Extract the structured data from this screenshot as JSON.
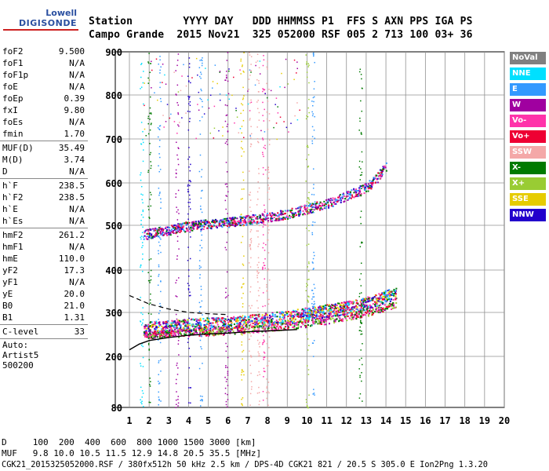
{
  "logo": {
    "top": "Lowell",
    "bottom": "DIGISONDE"
  },
  "header": {
    "row1": "Station        YYYY DAY   DDD HHMMSS P1  FFS S AXN PPS IGA PS",
    "row2": "Campo Grande  2015 Nov21  325 052000 RSF 005 2 713 100 03+ 36"
  },
  "params": {
    "group1": [
      {
        "label": "foF2",
        "value": "9.500"
      },
      {
        "label": "foF1",
        "value": "N/A"
      },
      {
        "label": "foF1p",
        "value": "N/A"
      },
      {
        "label": "foE",
        "value": "N/A"
      },
      {
        "label": "foEp",
        "value": "0.39"
      },
      {
        "label": "fxI",
        "value": "9.80"
      },
      {
        "label": "foEs",
        "value": "N/A"
      },
      {
        "label": "fmin",
        "value": "1.70"
      }
    ],
    "group2": [
      {
        "label": "MUF(D)",
        "value": "35.49"
      },
      {
        "label": "M(D)",
        "value": "3.74"
      },
      {
        "label": "D",
        "value": "N/A"
      }
    ],
    "group3": [
      {
        "label": "h`F",
        "value": "238.5"
      },
      {
        "label": "h`F2",
        "value": "238.5"
      },
      {
        "label": "h`E",
        "value": "N/A"
      },
      {
        "label": "h`Es",
        "value": "N/A"
      }
    ],
    "group4": [
      {
        "label": "hmF2",
        "value": "261.2"
      },
      {
        "label": "hmF1",
        "value": "N/A"
      },
      {
        "label": "hmE",
        "value": "110.0"
      },
      {
        "label": "yF2",
        "value": "17.3"
      },
      {
        "label": "yF1",
        "value": "N/A"
      },
      {
        "label": "yE",
        "value": "20.0"
      },
      {
        "label": "B0",
        "value": "21.0"
      },
      {
        "label": "B1",
        "value": "1.31"
      }
    ],
    "group5": [
      {
        "label": "C-level",
        "value": "33"
      }
    ],
    "auto": [
      "Auto:",
      "Artist5",
      "500200"
    ]
  },
  "legend": [
    {
      "label": "NoVal",
      "color": "#808080"
    },
    {
      "label": "NNE",
      "color": "#00e0ff"
    },
    {
      "label": "E",
      "color": "#3399ff"
    },
    {
      "label": "W",
      "color": "#a000a0"
    },
    {
      "label": "Vo-",
      "color": "#ff33aa"
    },
    {
      "label": "Vo+",
      "color": "#ee0033"
    },
    {
      "label": "SSW",
      "color": "#f4a8a8"
    },
    {
      "label": "X-",
      "color": "#007a00"
    },
    {
      "label": "X+",
      "color": "#99cc33"
    },
    {
      "label": "SSE",
      "color": "#e6cc00"
    },
    {
      "label": "NNW",
      "color": "#2200cc"
    }
  ],
  "footer": {
    "d_line": "D     100  200  400  600  800 1000 1500 3000 [km]",
    "muf_line": "MUF   9.8 10.0 10.5 11.5 12.9 14.8 20.5 35.5 [MHz]",
    "info_line": "CGK21_2015325052000.RSF / 380fx512h 50 kHz 2.5 km / DPS-4D CGK21 821 / 20.5 S 305.0 E Ion2Png 1.3.20"
  },
  "chart_data": {
    "type": "scatter",
    "x_ticks": [
      "1",
      "2",
      "3",
      "4",
      "5",
      "6",
      "7",
      "8",
      "9",
      "10",
      "11",
      "12",
      "13",
      "14",
      "15",
      "16",
      "17",
      "18",
      "19",
      "20"
    ],
    "y_ticks": [
      "80",
      "200",
      "300",
      "400",
      "500",
      "600",
      "700",
      "800",
      "900"
    ],
    "xlim": [
      1,
      20
    ],
    "ylim": [
      80,
      900
    ],
    "grid": true,
    "legend_position": "right",
    "traces": [
      {
        "name": "o-trace F2",
        "x": [
          1.7,
          3,
          4,
          5,
          6,
          7,
          8,
          9,
          10,
          11,
          12,
          13,
          13.5,
          14,
          14.5
        ],
        "y": [
          265,
          268,
          272,
          274,
          276,
          280,
          285,
          290,
          298,
          305,
          312,
          322,
          330,
          340,
          345
        ]
      },
      {
        "name": "x-trace F2",
        "x": [
          1.7,
          3,
          5,
          7,
          9,
          11,
          13,
          14.5
        ],
        "y": [
          250,
          252,
          256,
          262,
          270,
          282,
          300,
          320
        ]
      },
      {
        "name": "2nd hop",
        "x": [
          1.7,
          3,
          4,
          5,
          6,
          7,
          8,
          9,
          10,
          11,
          12,
          13,
          13.5,
          14
        ],
        "y": [
          480,
          490,
          500,
          505,
          508,
          514,
          520,
          528,
          540,
          552,
          570,
          590,
          610,
          640
        ]
      }
    ],
    "profile_solid": {
      "x": [
        1,
        1.5,
        2,
        3,
        4,
        5,
        6,
        7,
        8,
        9,
        9.5
      ],
      "y": [
        215,
        228,
        236,
        243,
        248,
        251,
        253,
        256,
        258,
        260,
        261
      ]
    },
    "profile_dashed": {
      "x": [
        1,
        2,
        3,
        4,
        5,
        6
      ],
      "y": [
        340,
        320,
        308,
        300,
        297,
        295
      ]
    },
    "fof2_marker": 9.5,
    "fxi_marker": 9.8
  }
}
